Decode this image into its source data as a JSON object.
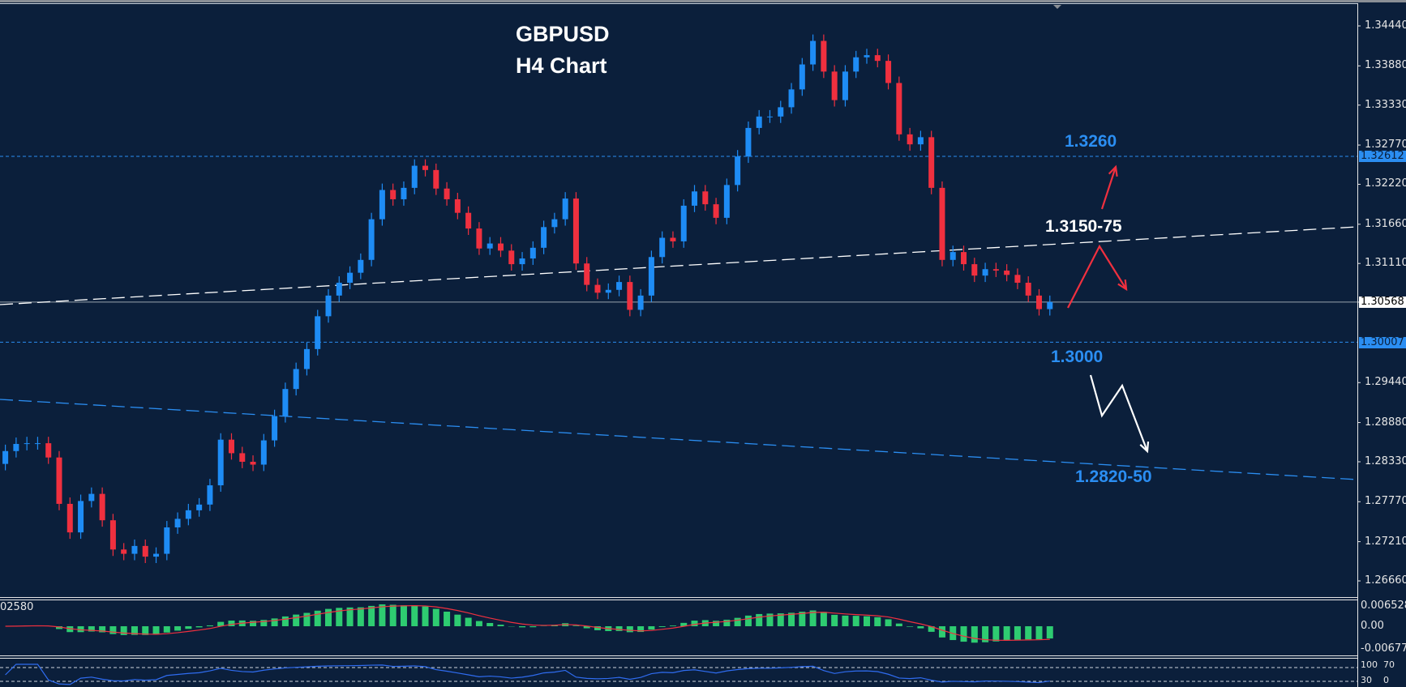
{
  "chart_data": {
    "type": "candlestick",
    "title": "GBPUSD",
    "subtitle": "H4 Chart",
    "ylim": [
      1.2636,
      1.348
    ],
    "y_ticks": [
      "1.34440",
      "1.33880",
      "1.33330",
      "1.32770",
      "1.32220",
      "1.31660",
      "1.31110",
      "1.30568",
      "1.29440",
      "1.28880",
      "1.28330",
      "1.27770",
      "1.27210",
      "1.26660"
    ],
    "first_open": 1.283,
    "closes": [
      1.2848,
      1.2858,
      1.2859,
      1.2859,
      1.2839,
      1.2774,
      1.2734,
      1.2778,
      1.2788,
      1.2751,
      1.271,
      1.2704,
      1.2715,
      1.27,
      1.2704,
      1.2741,
      1.2753,
      1.2765,
      1.2773,
      1.28,
      1.2864,
      1.2845,
      1.2833,
      1.2829,
      1.2863,
      1.2897,
      1.2935,
      1.2963,
      1.2991,
      1.3037,
      1.3066,
      1.3084,
      1.3098,
      1.3116,
      1.3173,
      1.3214,
      1.3201,
      1.3217,
      1.3248,
      1.3242,
      1.3216,
      1.3201,
      1.3182,
      1.316,
      1.3132,
      1.3139,
      1.3129,
      1.311,
      1.3118,
      1.3133,
      1.3162,
      1.3173,
      1.3202,
      1.3111,
      1.3081,
      1.307,
      1.3074,
      1.3085,
      1.3046,
      1.3066,
      1.312,
      1.3147,
      1.3142,
      1.3192,
      1.3212,
      1.3194,
      1.3175,
      1.3221,
      1.3261,
      1.3301,
      1.3317,
      1.3317,
      1.333,
      1.3355,
      1.339,
      1.3423,
      1.338,
      1.334,
      1.338,
      1.34,
      1.3403,
      1.3395,
      1.3364,
      1.3292,
      1.3278,
      1.3288,
      1.3217,
      1.3116,
      1.3127,
      1.311,
      1.3094,
      1.3103,
      1.3101,
      1.3095,
      1.3084,
      1.3066,
      1.3047,
      1.3057
    ],
    "levels": [
      {
        "price": 1.32612,
        "label": "1.32612",
        "style": "dotted",
        "color": "#2b8ef2"
      },
      {
        "price": 1.30007,
        "label": "1.30007",
        "style": "dotted",
        "color": "#2b8ef2"
      },
      {
        "price": 1.30568,
        "label": "1.30568",
        "style": "solid",
        "color": "#9aa4ad"
      }
    ],
    "annotations": {
      "resistance": "1.3260",
      "pivot": "1.3150-75",
      "support": "1.3000",
      "target": "1.2820-50"
    },
    "macd": {
      "label": "02580",
      "ticks": [
        "0.006528",
        "0.00",
        "-0.006775"
      ]
    },
    "rsi": {
      "ticks": [
        "100",
        "70",
        "30",
        "0"
      ]
    },
    "colors": {
      "background": "#0b1f3b",
      "bull": "#1e8cf5",
      "bear": "#f0303f",
      "histogram": "#2ecc71",
      "signal": "#f0303f",
      "rsi": "#2f6cf0"
    }
  }
}
